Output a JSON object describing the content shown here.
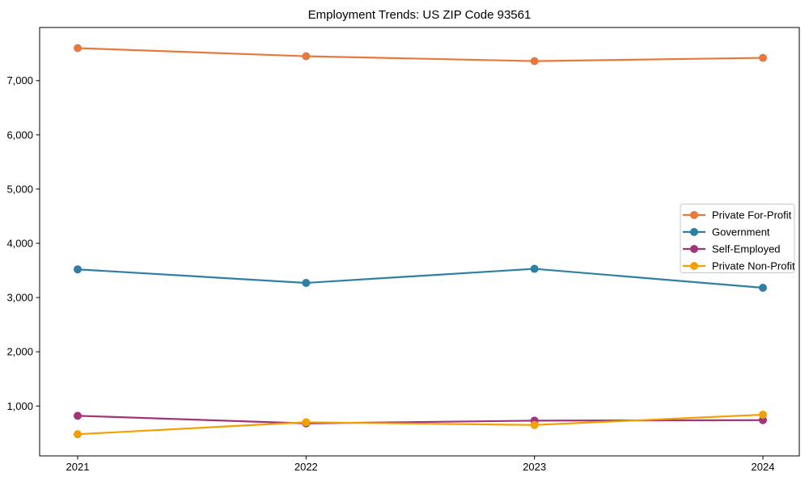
{
  "figure": {
    "background": "#ffffff",
    "axis_color": "#000000",
    "legend_border_color": "#c8c8c8"
  },
  "chart_data": {
    "type": "line",
    "title": "Employment Trends: US ZIP Code 93561",
    "xlabel": "",
    "ylabel": "",
    "categories": [
      "2021",
      "2022",
      "2023",
      "2024"
    ],
    "series": [
      {
        "name": "Private For-Profit",
        "color": "#e8793e",
        "values": [
          7600,
          7450,
          7360,
          7420
        ]
      },
      {
        "name": "Government",
        "color": "#2e7fa3",
        "values": [
          3520,
          3270,
          3530,
          3180
        ]
      },
      {
        "name": "Self-Employed",
        "color": "#a23577",
        "values": [
          820,
          680,
          730,
          740
        ]
      },
      {
        "name": "Private Non-Profit",
        "color": "#f2a104",
        "values": [
          480,
          700,
          650,
          840
        ]
      }
    ],
    "ylim": [
      80,
      7980
    ],
    "yticks": [
      1000,
      2000,
      3000,
      4000,
      5000,
      6000,
      7000
    ],
    "ytick_labels": [
      "1,000",
      "2,000",
      "3,000",
      "4,000",
      "5,000",
      "6,000",
      "7,000"
    ],
    "grid": false,
    "marker": "circle",
    "legend_position": "center right"
  }
}
